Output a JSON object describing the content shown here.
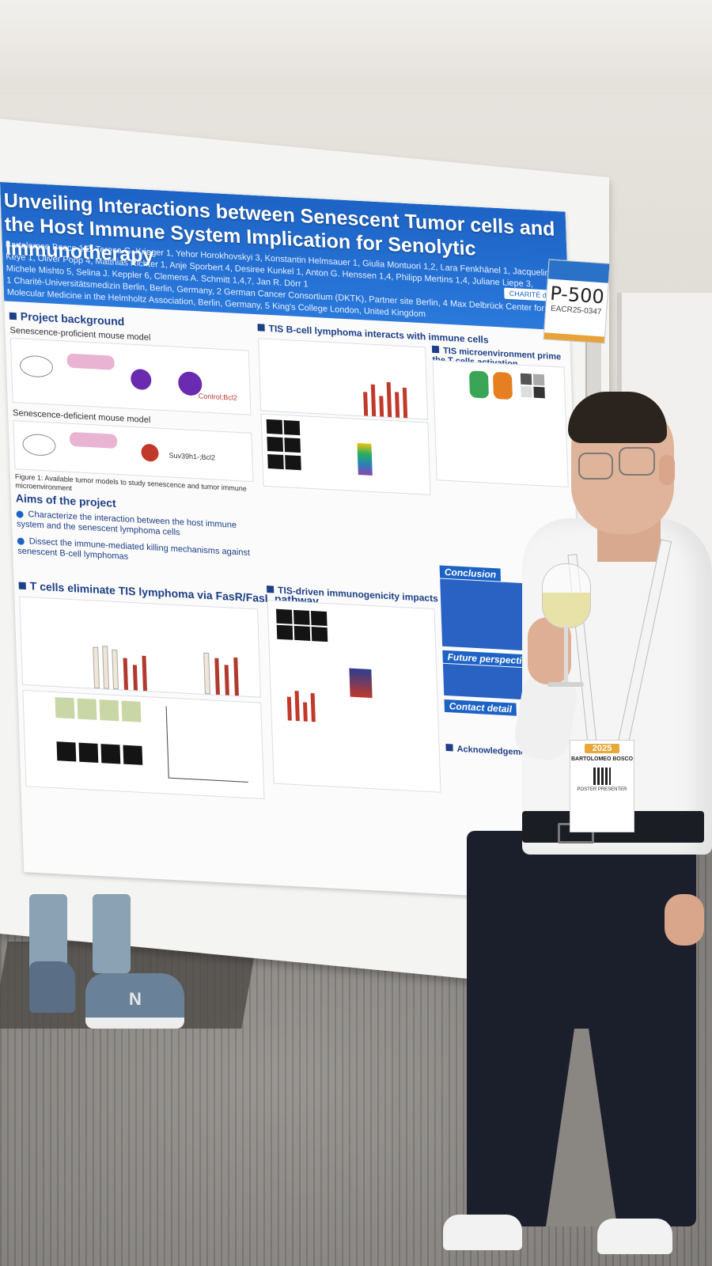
{
  "poster": {
    "title": "Unveiling Interactions between Senescent Tumor cells and the Host Immune System Implication for Senolytic Immunotherapy",
    "authors": "Bartolomeo Bosco 1,2, Teresa G. Krieger 1, Yehor Horokhovskyi 3, Konstantin Helmsauer 1, Giulia Montuori 1,2, Lara Fenkhänel 1, Jacqueline Keye 1, Oliver Popp 4, Matthias Richter 1, Anje Sporbert 4, Desiree Kunkel 1, Anton G. Henssen 1,4, Philipp Mertins 1,4, Juliane Liepe 3, Michele Mishto 5, Selina J. Keppler 6, Clemens A. Schmitt 1,4,7, Jan R. Dörr 1",
    "affiliations": "1 Charité-Universitätsmedizin Berlin, Berlin, Germany, 2 German Cancer Consortium (DKTK), Partner site Berlin, 4 Max Delbrück Center for Molecular Medicine in the Helmholtz Association, Berlin, Germany, 5 King's College London, United Kingdom",
    "logos": "CHARITÉ  dkfz",
    "sections": {
      "project_background": "Project background",
      "proficient_model": "Senescence-proficient mouse model",
      "deficient_model": "Senescence-deficient mouse model",
      "model_label_1": "Control;Bcl2",
      "model_label_2": "Suv39h1-;Bcl2",
      "figure1": "Figure 1: Available tumor models to study senescence and tumor immune microenvironment",
      "aims": "Aims of the project",
      "aim1": "Characterize the interaction between the host immune system and the senescent lymphoma cells",
      "aim2": "Dissect the immune-mediated killing mechanisms against senescent B-cell lymphomas",
      "tis_bcell": "TIS B-cell lymphoma interacts with immune cells",
      "tis_micro": "TIS microenvironment prime the T cells activation",
      "tcells": "T cells eliminate TIS lymphoma via FasR/FasL pathway",
      "immunogenicity": "TIS-driven immunogenicity impacts DLBCL survival",
      "conclusion": "Conclusion",
      "future": "Future perspectives",
      "contact": "Contact detail",
      "ack": "Acknowledgements"
    }
  },
  "tag": {
    "number": "P-500",
    "code": "EACR25-0347"
  },
  "badge": {
    "year": "2025",
    "name": "BARTOLOMEO BOSCO",
    "role": "POSTER PRESENTER"
  },
  "shoe_logo": "N"
}
